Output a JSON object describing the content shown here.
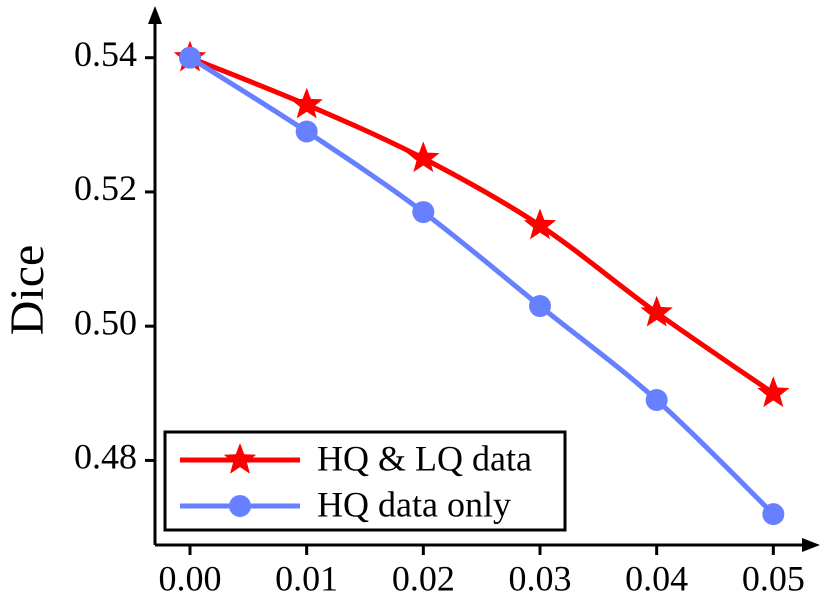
{
  "chart_data": {
    "type": "line",
    "y_label": "Dice",
    "x": [
      0.0,
      0.01,
      0.02,
      0.03,
      0.04,
      0.05
    ],
    "series": [
      {
        "name": "HQ & LQ data",
        "color": "#ff0000",
        "marker": "star",
        "values": [
          0.54,
          0.533,
          0.525,
          0.515,
          0.502,
          0.49
        ]
      },
      {
        "name": "HQ data only",
        "color": "#6680ff",
        "marker": "circle",
        "values": [
          0.54,
          0.529,
          0.517,
          0.503,
          0.489,
          0.472
        ]
      }
    ],
    "xlim": [
      -0.003,
      0.054
    ],
    "ylim": [
      0.4674,
      0.5477
    ],
    "xticks": [
      {
        "value": 0,
        "label": "0.00"
      },
      0.01,
      0.02,
      0.03,
      0.04,
      0.05
    ],
    "yticks": [
      0.48,
      {
        "value": 0.5,
        "label": "0.50"
      },
      0.52,
      0.54
    ],
    "legend": "lower left",
    "grid": false
  }
}
